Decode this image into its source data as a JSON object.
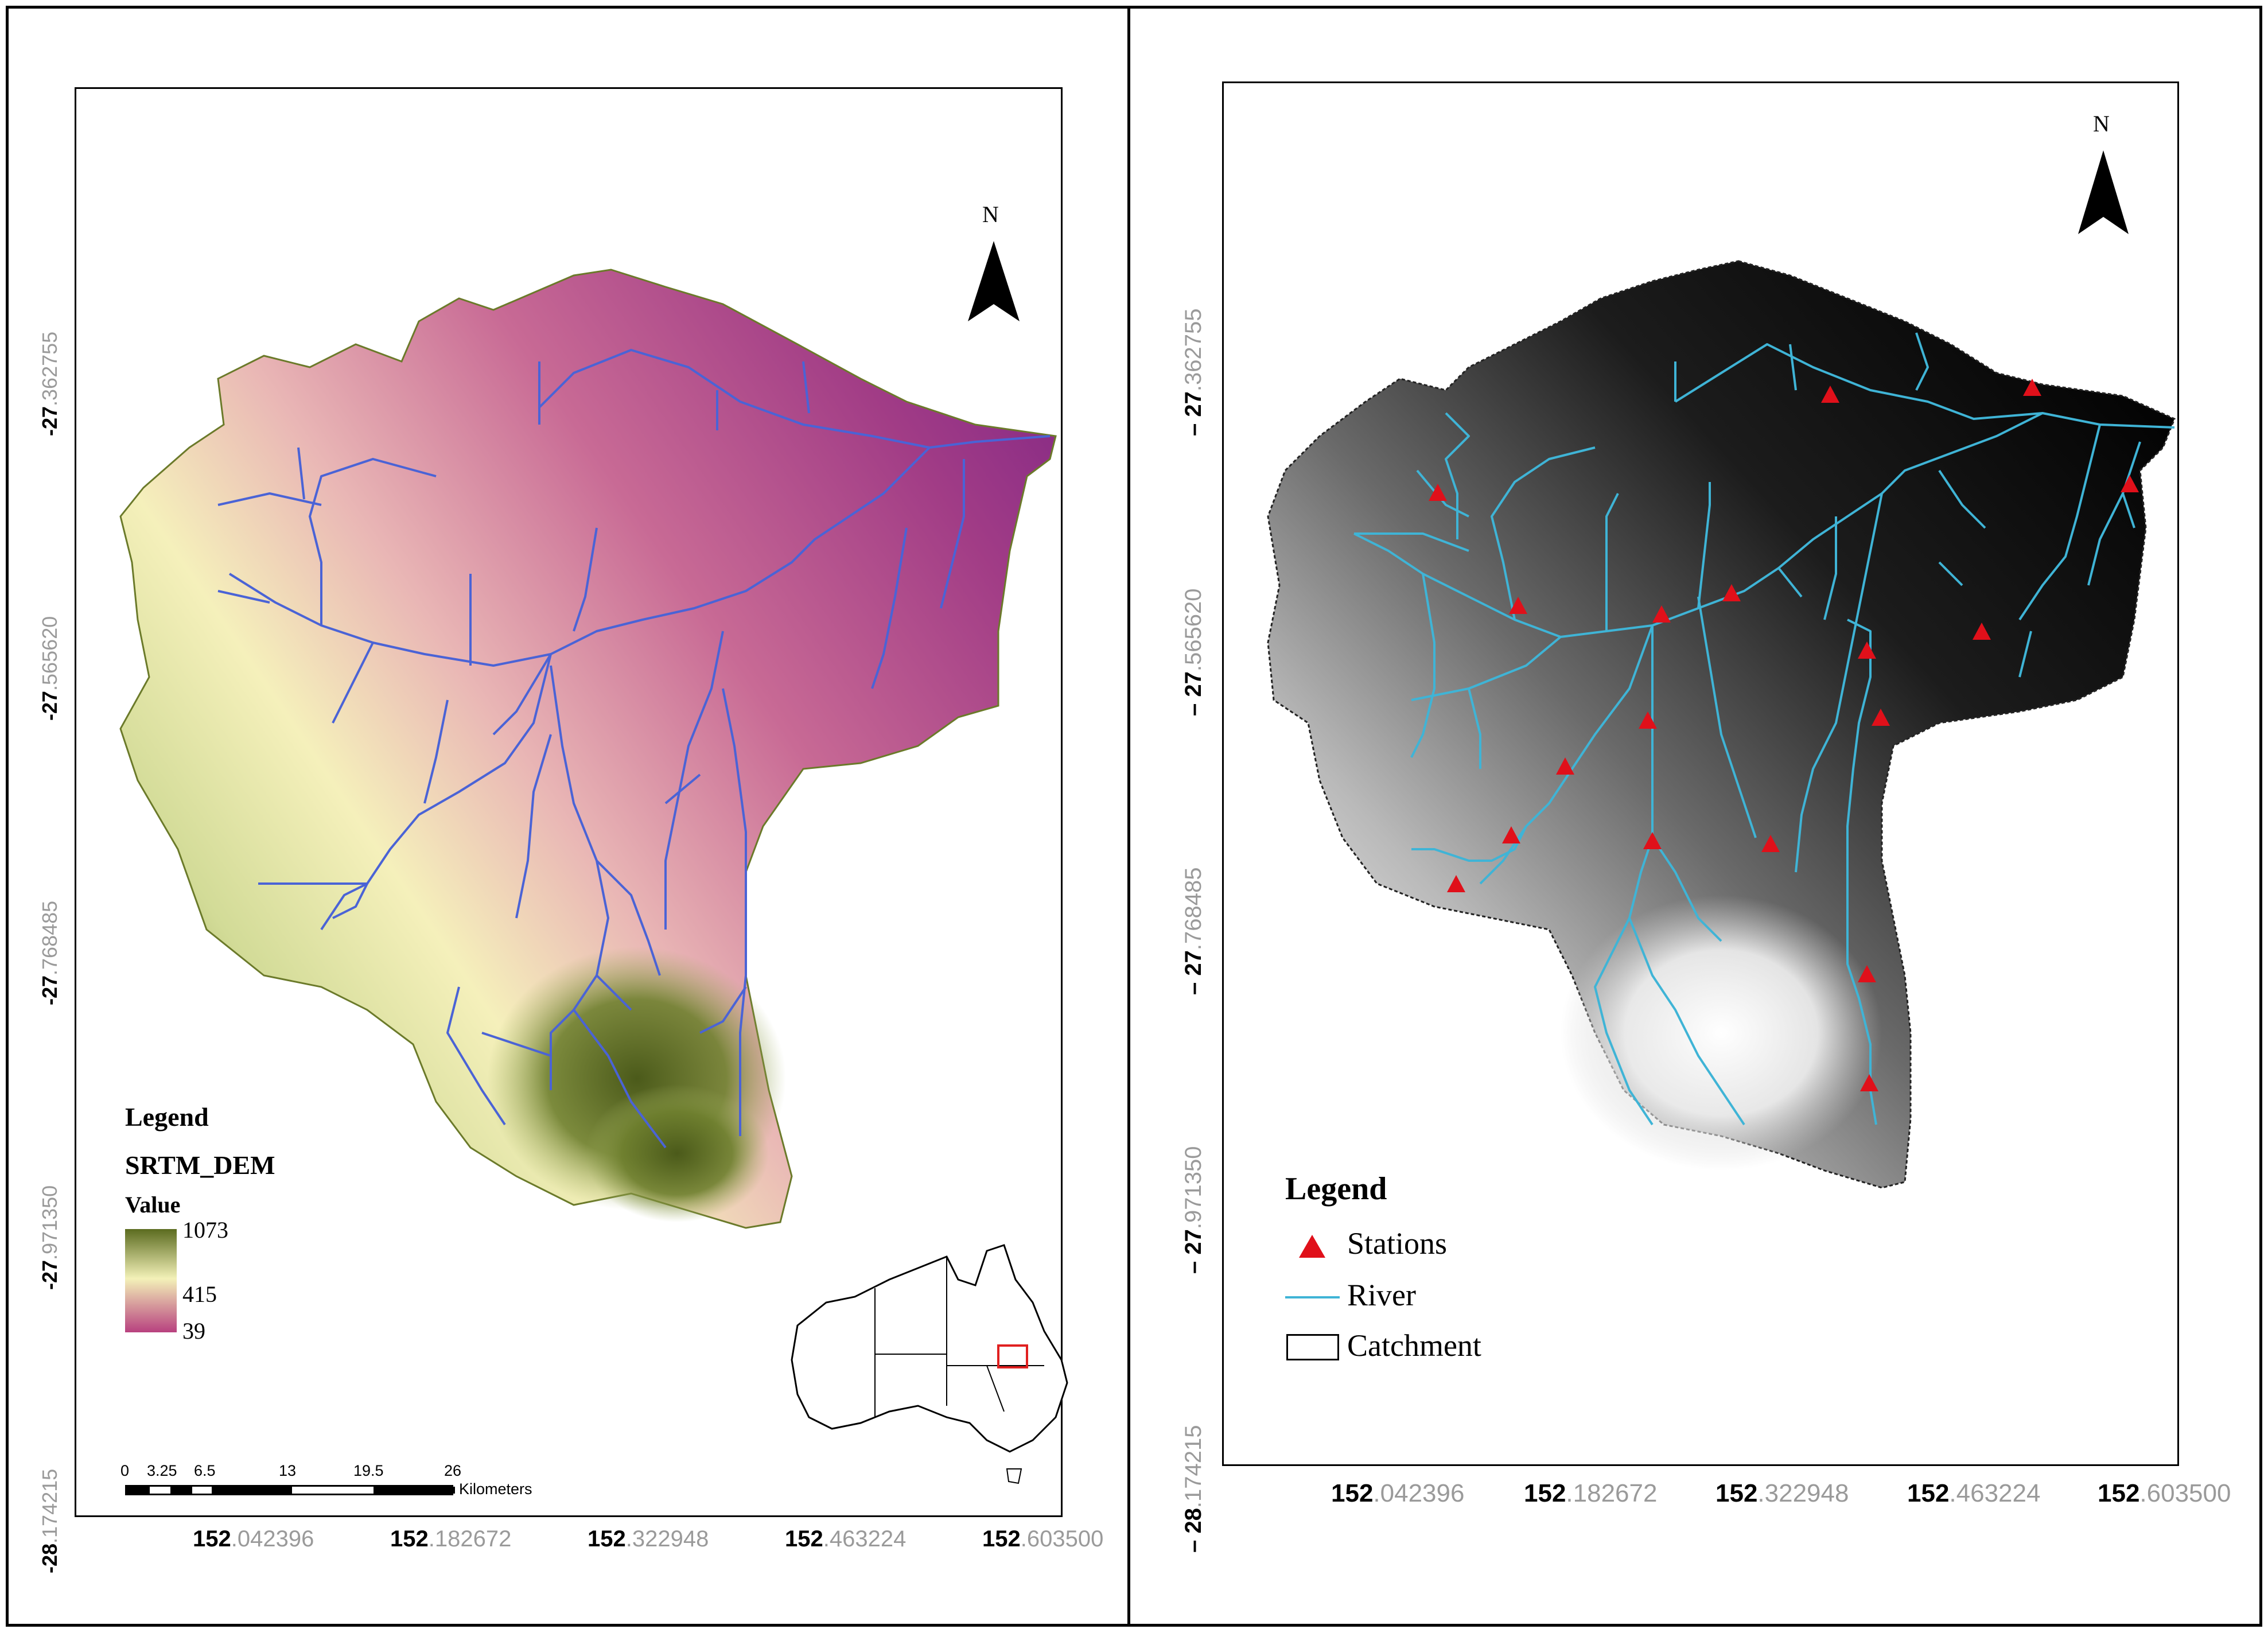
{
  "left_panel": {
    "north": "N",
    "legend": {
      "title": "Legend",
      "layer": "SRTM_DEM",
      "value_label": "Value",
      "max": "1073",
      "mid": "415",
      "min": "39",
      "ramp_colors": [
        "#5b6b1f",
        "#f5f3bb",
        "#b8417f"
      ]
    },
    "scale": {
      "ticks": [
        "0",
        "3.25",
        "6.5",
        "13",
        "19.5",
        "26"
      ],
      "unit": "Kilometers"
    },
    "y_coords": [
      {
        "int": "-27",
        "dec": ".362755"
      },
      {
        "int": "-27",
        "dec": ".565620"
      },
      {
        "int": "-27",
        "dec": ".768485"
      },
      {
        "int": "-27",
        "dec": ".971350"
      },
      {
        "int": "-28",
        "dec": ".174215"
      }
    ],
    "x_coords": [
      {
        "int": "152",
        "dec": ".042396"
      },
      {
        "int": "152",
        "dec": ".182672"
      },
      {
        "int": "152",
        "dec": ".322948"
      },
      {
        "int": "152",
        "dec": ".463224"
      },
      {
        "int": "152",
        "dec": ".603500"
      }
    ]
  },
  "right_panel": {
    "north": "N",
    "legend": {
      "title": "Legend",
      "items": [
        {
          "label": "Stations",
          "symbol": "triangle",
          "color": "#e0101a"
        },
        {
          "label": "River",
          "symbol": "line",
          "color": "#3fb4d6"
        },
        {
          "label": "Catchment",
          "symbol": "box",
          "color": "#000000"
        }
      ]
    },
    "y_coords": [
      {
        "int": "– 27",
        "dec": ".362755"
      },
      {
        "int": "– 27",
        "dec": ".565620"
      },
      {
        "int": "– 27",
        "dec": ".768485"
      },
      {
        "int": "– 27",
        "dec": ".971350"
      },
      {
        "int": "– 28",
        "dec": ".174215"
      }
    ],
    "x_coords": [
      {
        "int": "152",
        "dec": ".042396"
      },
      {
        "int": "152",
        "dec": ".182672"
      },
      {
        "int": "152",
        "dec": ".322948"
      },
      {
        "int": "152",
        "dec": ".463224"
      },
      {
        "int": "152",
        "dec": ".603500"
      }
    ]
  }
}
